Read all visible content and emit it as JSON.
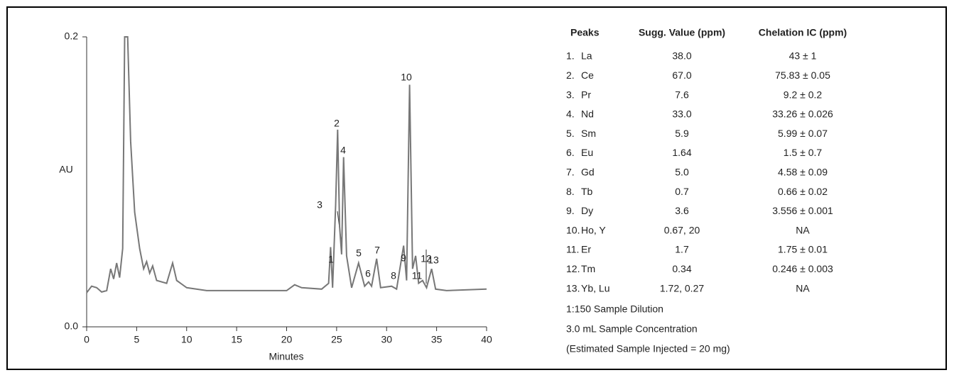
{
  "chart_data": {
    "type": "line",
    "ylabel": "AU",
    "xlabel": "Minutes",
    "color": "#777777",
    "x": [
      0,
      0.5,
      1.0,
      1.5,
      2.0,
      2.4,
      2.7,
      3.0,
      3.3,
      3.6,
      3.8,
      4.1,
      4.4,
      4.8,
      5.3,
      5.7,
      6.0,
      6.3,
      6.6,
      7.0,
      8.0,
      8.6,
      9.0,
      10,
      12,
      20,
      20.8,
      21.5,
      23.5,
      24.2,
      24.4,
      24.6,
      24.9,
      25.1,
      25.3,
      25.5,
      25.7,
      26.0,
      26.5,
      27.2,
      27.8,
      28.2,
      28.5,
      29.0,
      29.4,
      30.5,
      31.0,
      31.7,
      32.0,
      32.3,
      32.6,
      32.9,
      33.2,
      33.6,
      34.0,
      34.5,
      34.9,
      36,
      40
    ],
    "values": [
      0.0235,
      0.028,
      0.027,
      0.024,
      0.025,
      0.04,
      0.033,
      0.044,
      0.034,
      0.054,
      0.2,
      0.2,
      0.128,
      0.079,
      0.054,
      0.04,
      0.045,
      0.037,
      0.042,
      0.032,
      0.03,
      0.044,
      0.032,
      0.027,
      0.025,
      0.025,
      0.029,
      0.027,
      0.026,
      0.03,
      0.055,
      0.027,
      0.084,
      0.136,
      0.069,
      0.05,
      0.117,
      0.049,
      0.027,
      0.044,
      0.028,
      0.031,
      0.028,
      0.047,
      0.027,
      0.028,
      0.026,
      0.056,
      0.032,
      0.167,
      0.04,
      0.049,
      0.03,
      0.032,
      0.027,
      0.04,
      0.026,
      0.025,
      0.026
    ],
    "xlim": [
      0,
      40
    ],
    "xticks": [
      0,
      5,
      10,
      15,
      20,
      25,
      30,
      35,
      40
    ],
    "ylim": [
      0,
      0.2
    ],
    "yticks": [
      {
        "value": 0,
        "label": "0.0"
      },
      0.2
    ],
    "annotations": [
      "1",
      "2",
      "3",
      "4",
      "5",
      "6",
      "7",
      "8",
      "9",
      "10",
      "11",
      "12",
      "13"
    ]
  },
  "table": {
    "header": [
      "Peaks",
      "Sugg. Value (ppm)",
      "Chelation IC (ppm)"
    ],
    "rows": [
      [
        "1.",
        "La",
        "38.0",
        "43 ± 1"
      ],
      [
        "2.",
        "Ce",
        "67.0",
        "75.83 ± 0.05"
      ],
      [
        "3.",
        "Pr",
        "7.6",
        "9.2 ± 0.2"
      ],
      [
        "4.",
        "Nd",
        "33.0",
        "33.26 ± 0.026"
      ],
      [
        "5.",
        "Sm",
        "5.9",
        "5.99 ± 0.07"
      ],
      [
        "6.",
        "Eu",
        "1.64",
        "1.5 ± 0.7"
      ],
      [
        "7.",
        "Gd",
        "5.0",
        "4.58 ± 0.09"
      ],
      [
        "8.",
        "Tb",
        "0.7",
        "0.66 ± 0.02"
      ],
      [
        "9.",
        "Dy",
        "3.6",
        "3.556 ± 0.001"
      ],
      [
        "10.",
        "Ho, Y",
        "0.67, 20",
        "NA"
      ],
      [
        "11.",
        "Er",
        "1.7",
        "1.75 ± 0.01"
      ],
      [
        "12.",
        "Tm",
        "0.34",
        "0.246 ± 0.003"
      ],
      [
        "13.",
        "Yb, Lu",
        "1.72, 0.27",
        "NA"
      ]
    ],
    "notes": [
      "1:150 Sample Dilution",
      "3.0 mL Sample Concentration",
      "(Estimated Sample Injected = 20 mg)"
    ]
  }
}
